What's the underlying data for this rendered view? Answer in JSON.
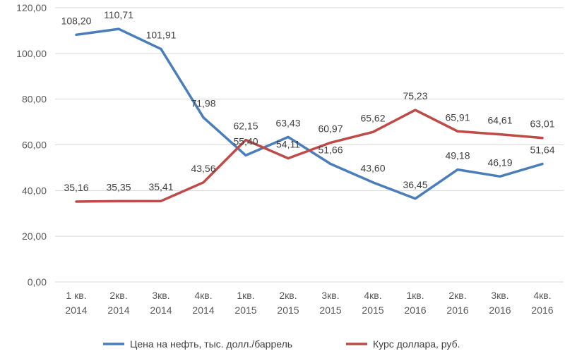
{
  "chart_data": {
    "type": "line",
    "title": "",
    "xlabel": "",
    "ylabel": "",
    "categories": [
      [
        "1 кв.",
        "2014"
      ],
      [
        "2кв.",
        "2014"
      ],
      [
        "3кв.",
        "2014"
      ],
      [
        "4кв.",
        "2014"
      ],
      [
        "1кв.",
        "2015"
      ],
      [
        "2кв.",
        "2015"
      ],
      [
        "3кв.",
        "2015"
      ],
      [
        "4кв.",
        "2015"
      ],
      [
        "1кв.",
        "2016"
      ],
      [
        "2кв.",
        "2016"
      ],
      [
        "3кв.",
        "2016"
      ],
      [
        "4кв.",
        "2016"
      ]
    ],
    "ylim": [
      0,
      120
    ],
    "yticks": [
      "0,00",
      "20,00",
      "40,00",
      "60,00",
      "80,00",
      "100,00",
      "120,00"
    ],
    "grid": true,
    "legend_position": "bottom",
    "series": [
      {
        "name": "Цена на нефть, тыс. долл./баррель",
        "color": "#4a7ebb",
        "values": [
          108.2,
          110.71,
          101.91,
          71.98,
          55.4,
          63.43,
          51.66,
          43.6,
          36.45,
          49.18,
          46.19,
          51.64
        ],
        "labels": [
          "108,20",
          "110,71",
          "101,91",
          "71,98",
          "55,40",
          "63,43",
          "51,66",
          "43,60",
          "36,45",
          "49,18",
          "46,19",
          "51,64"
        ]
      },
      {
        "name": "Курс доллара, руб.",
        "color": "#be4b48",
        "values": [
          35.16,
          35.35,
          35.41,
          43.56,
          62.15,
          54.11,
          60.97,
          65.62,
          75.23,
          65.91,
          64.61,
          63.01
        ],
        "labels": [
          "35,16",
          "35,35",
          "35,41",
          "43,56",
          "62,15",
          "54,11",
          "60,97",
          "65,62",
          "75,23",
          "65,91",
          "64,61",
          "63,01"
        ]
      }
    ]
  }
}
